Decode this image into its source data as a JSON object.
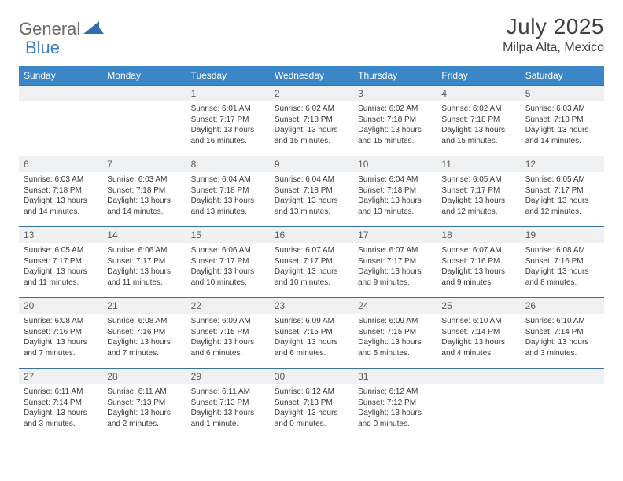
{
  "brand": {
    "part1": "General",
    "part2": "Blue"
  },
  "title": "July 2025",
  "location": "Milpa Alta, Mexico",
  "colors": {
    "header_bg": "#3b86c7",
    "header_text": "#ffffff",
    "daynum_bg": "#eef0f1",
    "cell_border": "#3b6fa0",
    "brand_gray": "#6a6a6a",
    "brand_blue": "#3b7fbf",
    "title_color": "#414141"
  },
  "daysOfWeek": [
    "Sunday",
    "Monday",
    "Tuesday",
    "Wednesday",
    "Thursday",
    "Friday",
    "Saturday"
  ],
  "weeks": [
    [
      null,
      null,
      {
        "n": "1",
        "sr": "6:01 AM",
        "ss": "7:17 PM",
        "dl": "13 hours and 16 minutes."
      },
      {
        "n": "2",
        "sr": "6:02 AM",
        "ss": "7:18 PM",
        "dl": "13 hours and 15 minutes."
      },
      {
        "n": "3",
        "sr": "6:02 AM",
        "ss": "7:18 PM",
        "dl": "13 hours and 15 minutes."
      },
      {
        "n": "4",
        "sr": "6:02 AM",
        "ss": "7:18 PM",
        "dl": "13 hours and 15 minutes."
      },
      {
        "n": "5",
        "sr": "6:03 AM",
        "ss": "7:18 PM",
        "dl": "13 hours and 14 minutes."
      }
    ],
    [
      {
        "n": "6",
        "sr": "6:03 AM",
        "ss": "7:18 PM",
        "dl": "13 hours and 14 minutes."
      },
      {
        "n": "7",
        "sr": "6:03 AM",
        "ss": "7:18 PM",
        "dl": "13 hours and 14 minutes."
      },
      {
        "n": "8",
        "sr": "6:04 AM",
        "ss": "7:18 PM",
        "dl": "13 hours and 13 minutes."
      },
      {
        "n": "9",
        "sr": "6:04 AM",
        "ss": "7:18 PM",
        "dl": "13 hours and 13 minutes."
      },
      {
        "n": "10",
        "sr": "6:04 AM",
        "ss": "7:18 PM",
        "dl": "13 hours and 13 minutes."
      },
      {
        "n": "11",
        "sr": "6:05 AM",
        "ss": "7:17 PM",
        "dl": "13 hours and 12 minutes."
      },
      {
        "n": "12",
        "sr": "6:05 AM",
        "ss": "7:17 PM",
        "dl": "13 hours and 12 minutes."
      }
    ],
    [
      {
        "n": "13",
        "sr": "6:05 AM",
        "ss": "7:17 PM",
        "dl": "13 hours and 11 minutes."
      },
      {
        "n": "14",
        "sr": "6:06 AM",
        "ss": "7:17 PM",
        "dl": "13 hours and 11 minutes."
      },
      {
        "n": "15",
        "sr": "6:06 AM",
        "ss": "7:17 PM",
        "dl": "13 hours and 10 minutes."
      },
      {
        "n": "16",
        "sr": "6:07 AM",
        "ss": "7:17 PM",
        "dl": "13 hours and 10 minutes."
      },
      {
        "n": "17",
        "sr": "6:07 AM",
        "ss": "7:17 PM",
        "dl": "13 hours and 9 minutes."
      },
      {
        "n": "18",
        "sr": "6:07 AM",
        "ss": "7:16 PM",
        "dl": "13 hours and 9 minutes."
      },
      {
        "n": "19",
        "sr": "6:08 AM",
        "ss": "7:16 PM",
        "dl": "13 hours and 8 minutes."
      }
    ],
    [
      {
        "n": "20",
        "sr": "6:08 AM",
        "ss": "7:16 PM",
        "dl": "13 hours and 7 minutes."
      },
      {
        "n": "21",
        "sr": "6:08 AM",
        "ss": "7:16 PM",
        "dl": "13 hours and 7 minutes."
      },
      {
        "n": "22",
        "sr": "6:09 AM",
        "ss": "7:15 PM",
        "dl": "13 hours and 6 minutes."
      },
      {
        "n": "23",
        "sr": "6:09 AM",
        "ss": "7:15 PM",
        "dl": "13 hours and 6 minutes."
      },
      {
        "n": "24",
        "sr": "6:09 AM",
        "ss": "7:15 PM",
        "dl": "13 hours and 5 minutes."
      },
      {
        "n": "25",
        "sr": "6:10 AM",
        "ss": "7:14 PM",
        "dl": "13 hours and 4 minutes."
      },
      {
        "n": "26",
        "sr": "6:10 AM",
        "ss": "7:14 PM",
        "dl": "13 hours and 3 minutes."
      }
    ],
    [
      {
        "n": "27",
        "sr": "6:11 AM",
        "ss": "7:14 PM",
        "dl": "13 hours and 3 minutes."
      },
      {
        "n": "28",
        "sr": "6:11 AM",
        "ss": "7:13 PM",
        "dl": "13 hours and 2 minutes."
      },
      {
        "n": "29",
        "sr": "6:11 AM",
        "ss": "7:13 PM",
        "dl": "13 hours and 1 minute."
      },
      {
        "n": "30",
        "sr": "6:12 AM",
        "ss": "7:13 PM",
        "dl": "13 hours and 0 minutes."
      },
      {
        "n": "31",
        "sr": "6:12 AM",
        "ss": "7:12 PM",
        "dl": "13 hours and 0 minutes."
      },
      null,
      null
    ]
  ],
  "labels": {
    "sunrise": "Sunrise:",
    "sunset": "Sunset:",
    "daylight": "Daylight:"
  }
}
